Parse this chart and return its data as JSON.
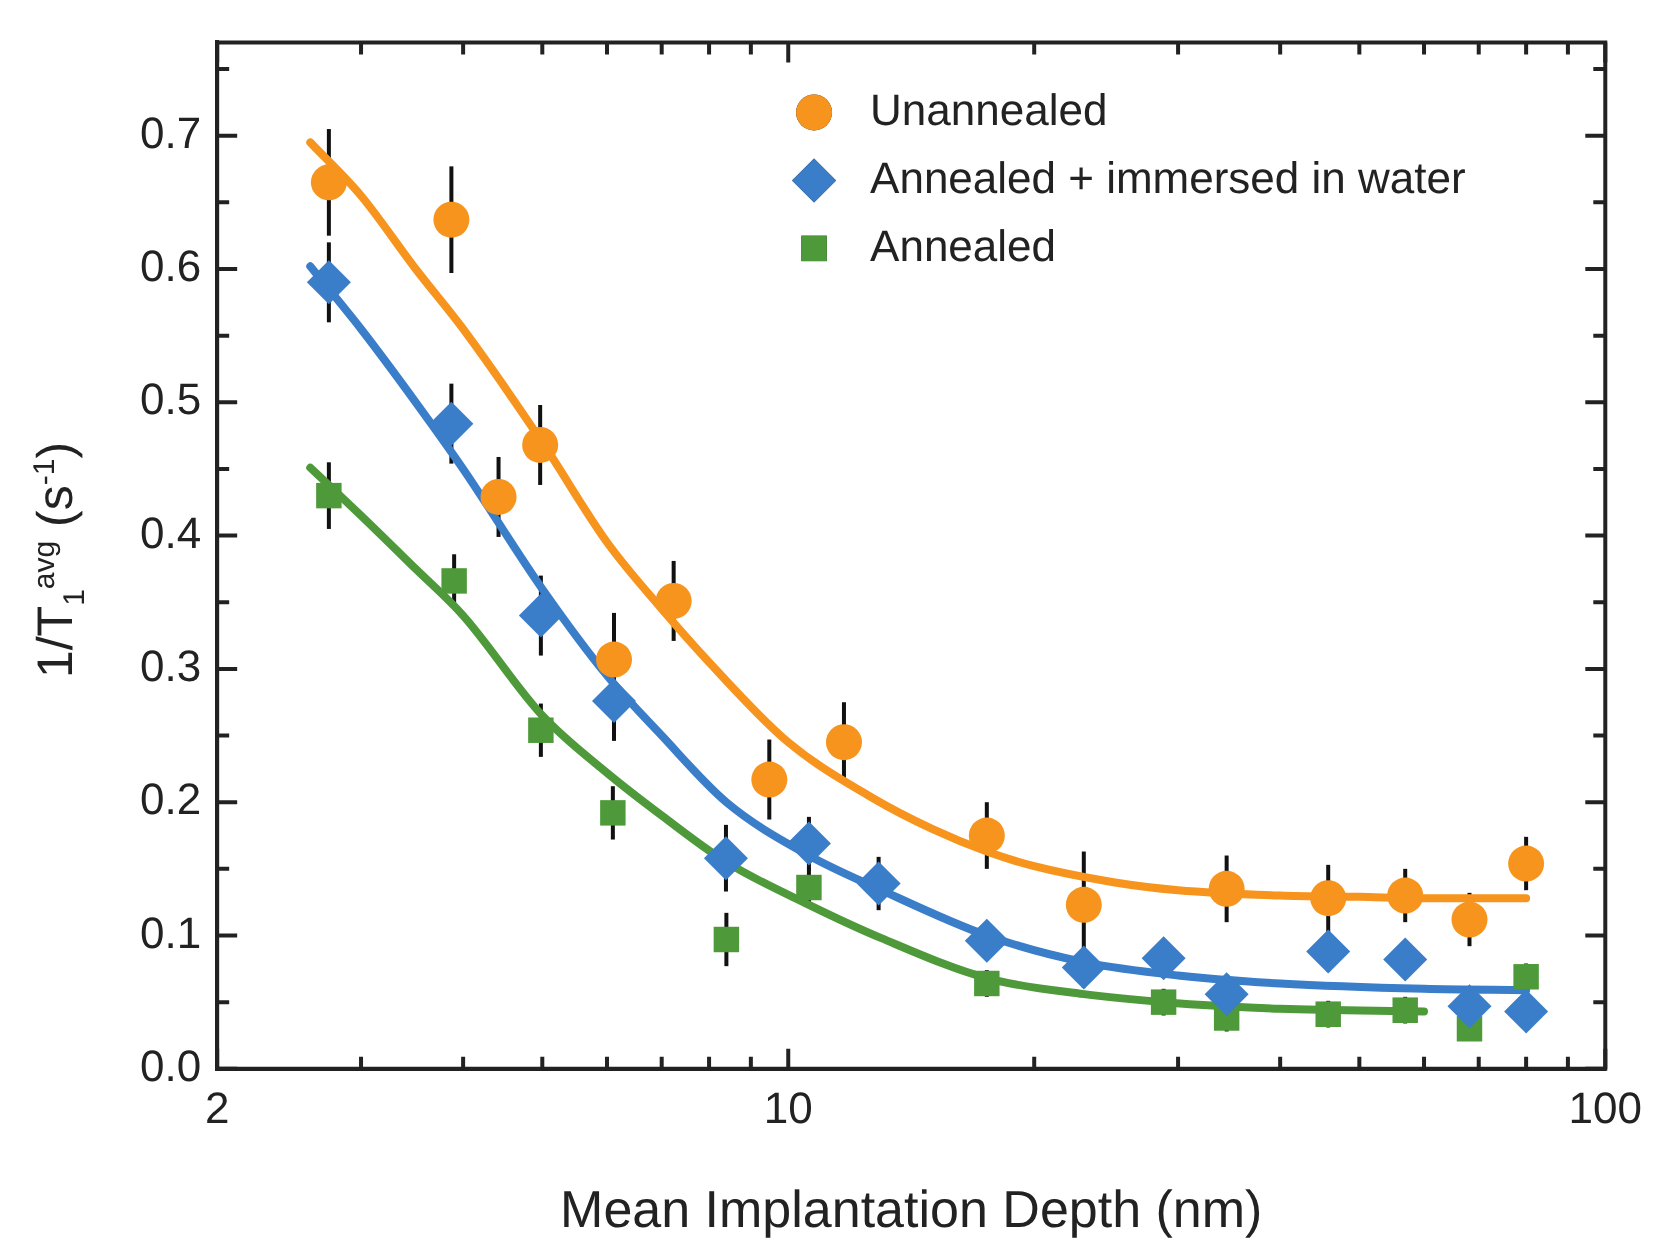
{
  "chart_data": {
    "type": "scatter",
    "xlabel": "Mean Implantation Depth (nm)",
    "ylabel": "1/T$_{1}$$^{avg}$ (s$^{-1}$)",
    "log": "x",
    "grid": false,
    "legend": "top right",
    "xlim": [
      2,
      100
    ],
    "ylim": [
      0,
      0.77
    ],
    "xticks": [
      2,
      {
        "value": 3,
        "label": null
      },
      {
        "value": 4,
        "label": null
      },
      {
        "value": 5,
        "label": null
      },
      {
        "value": 6,
        "label": null
      },
      {
        "value": 7,
        "label": null
      },
      {
        "value": 8,
        "label": null
      },
      {
        "value": 9,
        "label": null
      },
      10,
      {
        "value": 20,
        "label": null
      },
      {
        "value": 30,
        "label": null
      },
      {
        "value": 40,
        "label": null
      },
      {
        "value": 50,
        "label": null
      },
      {
        "value": 60,
        "label": null
      },
      {
        "value": 70,
        "label": null
      },
      {
        "value": 80,
        "label": null
      },
      {
        "value": 90,
        "label": null
      },
      100
    ],
    "yticks": [
      {
        "value": 0,
        "label": "0.0"
      },
      {
        "value": 0.05,
        "label": null
      },
      {
        "value": 0.1,
        "label": "0.1"
      },
      {
        "value": 0.15,
        "label": null
      },
      {
        "value": 0.2,
        "label": "0.2"
      },
      {
        "value": 0.25,
        "label": null
      },
      {
        "value": 0.3,
        "label": "0.3"
      },
      {
        "value": 0.35,
        "label": null
      },
      {
        "value": 0.4,
        "label": "0.4"
      },
      {
        "value": 0.45,
        "label": null
      },
      {
        "value": 0.5,
        "label": "0.5"
      },
      {
        "value": 0.55,
        "label": null
      },
      {
        "value": 0.6,
        "label": "0.6"
      },
      {
        "value": 0.65,
        "label": null
      },
      {
        "value": 0.7,
        "label": "0.7"
      },
      {
        "value": 0.75,
        "label": null
      }
    ],
    "series": [
      {
        "name": "Unannealed",
        "marker": "circle",
        "color": "#f7941d",
        "x": [
          2.74,
          3.87,
          4.42,
          4.97,
          6.12,
          7.24,
          9.48,
          11.7,
          17.5,
          23,
          34.4,
          45.8,
          56.9,
          68.2,
          80
        ],
        "values": [
          0.665,
          0.637,
          0.429,
          0.468,
          0.307,
          0.351,
          0.217,
          0.245,
          0.175,
          0.123,
          0.135,
          0.128,
          0.13,
          0.112,
          0.154
        ],
        "errors": [
          0.04,
          0.04,
          0.03,
          0.03,
          0.035,
          0.03,
          0.03,
          0.03,
          0.025,
          0.04,
          0.025,
          0.025,
          0.02,
          0.02,
          0.02
        ]
      },
      {
        "name": "Annealed + immersed in water",
        "marker": "diamond",
        "color": "#3a7dc9",
        "x": [
          2.74,
          3.87,
          4.98,
          6.12,
          8.39,
          10.6,
          12.9,
          17.5,
          23,
          28.8,
          34.4,
          45.8,
          56.9,
          68.2,
          80
        ],
        "values": [
          0.59,
          0.484,
          0.34,
          0.276,
          0.158,
          0.169,
          0.139,
          0.096,
          0.076,
          0.083,
          0.056,
          0.088,
          0.082,
          0.047,
          0.043
        ],
        "errors": [
          0.03,
          0.03,
          0.03,
          0.03,
          0.025,
          0.02,
          0.02,
          null,
          0.015,
          null,
          null,
          0.015,
          null,
          null,
          null
        ]
      },
      {
        "name": "Annealed",
        "marker": "square",
        "color": "#4e9a3a",
        "x": [
          2.74,
          3.9,
          4.98,
          6.1,
          8.4,
          10.6,
          17.5,
          28.8,
          34.4,
          45.8,
          56.9,
          68.2,
          80
        ],
        "values": [
          0.43,
          0.366,
          0.254,
          0.192,
          0.097,
          0.136,
          0.064,
          0.05,
          0.038,
          0.041,
          0.044,
          0.03,
          0.069
        ],
        "errors": [
          0.025,
          0.02,
          0.02,
          0.02,
          0.02,
          0.015,
          0.01,
          0.01,
          0.01,
          0.01,
          0.01,
          null,
          0.01
        ]
      },
      {
        "type": "line",
        "marker": "none",
        "color": "#f7941d",
        "x": [
          2.6,
          3,
          3.5,
          4,
          5,
          6,
          7,
          8,
          10,
          12.7,
          15,
          17.5,
          20,
          25,
          30,
          40,
          50,
          60,
          80
        ],
        "values": [
          0.695,
          0.655,
          0.6,
          0.555,
          0.47,
          0.395,
          0.345,
          0.305,
          0.245,
          0.203,
          0.18,
          0.163,
          0.152,
          0.14,
          0.134,
          0.13,
          0.129,
          0.128,
          0.128
        ]
      },
      {
        "type": "line",
        "marker": "none",
        "color": "#3a7dc9",
        "x": [
          2.6,
          3,
          3.5,
          4,
          5,
          6,
          7,
          8.4,
          10.6,
          12.9,
          17.5,
          23,
          30,
          40,
          60,
          80
        ],
        "values": [
          0.602,
          0.555,
          0.5,
          0.45,
          0.36,
          0.295,
          0.25,
          0.2,
          0.16,
          0.135,
          0.1,
          0.08,
          0.07,
          0.064,
          0.06,
          0.059
        ]
      },
      {
        "type": "line",
        "marker": "none",
        "color": "#4e9a3a",
        "x": [
          2.6,
          3,
          3.5,
          4,
          5,
          6,
          7,
          8.4,
          10.6,
          13,
          17.5,
          23,
          28.8,
          40,
          60
        ],
        "values": [
          0.451,
          0.415,
          0.375,
          0.34,
          0.265,
          0.222,
          0.19,
          0.155,
          0.123,
          0.098,
          0.068,
          0.056,
          0.05,
          0.045,
          0.043
        ]
      }
    ]
  }
}
